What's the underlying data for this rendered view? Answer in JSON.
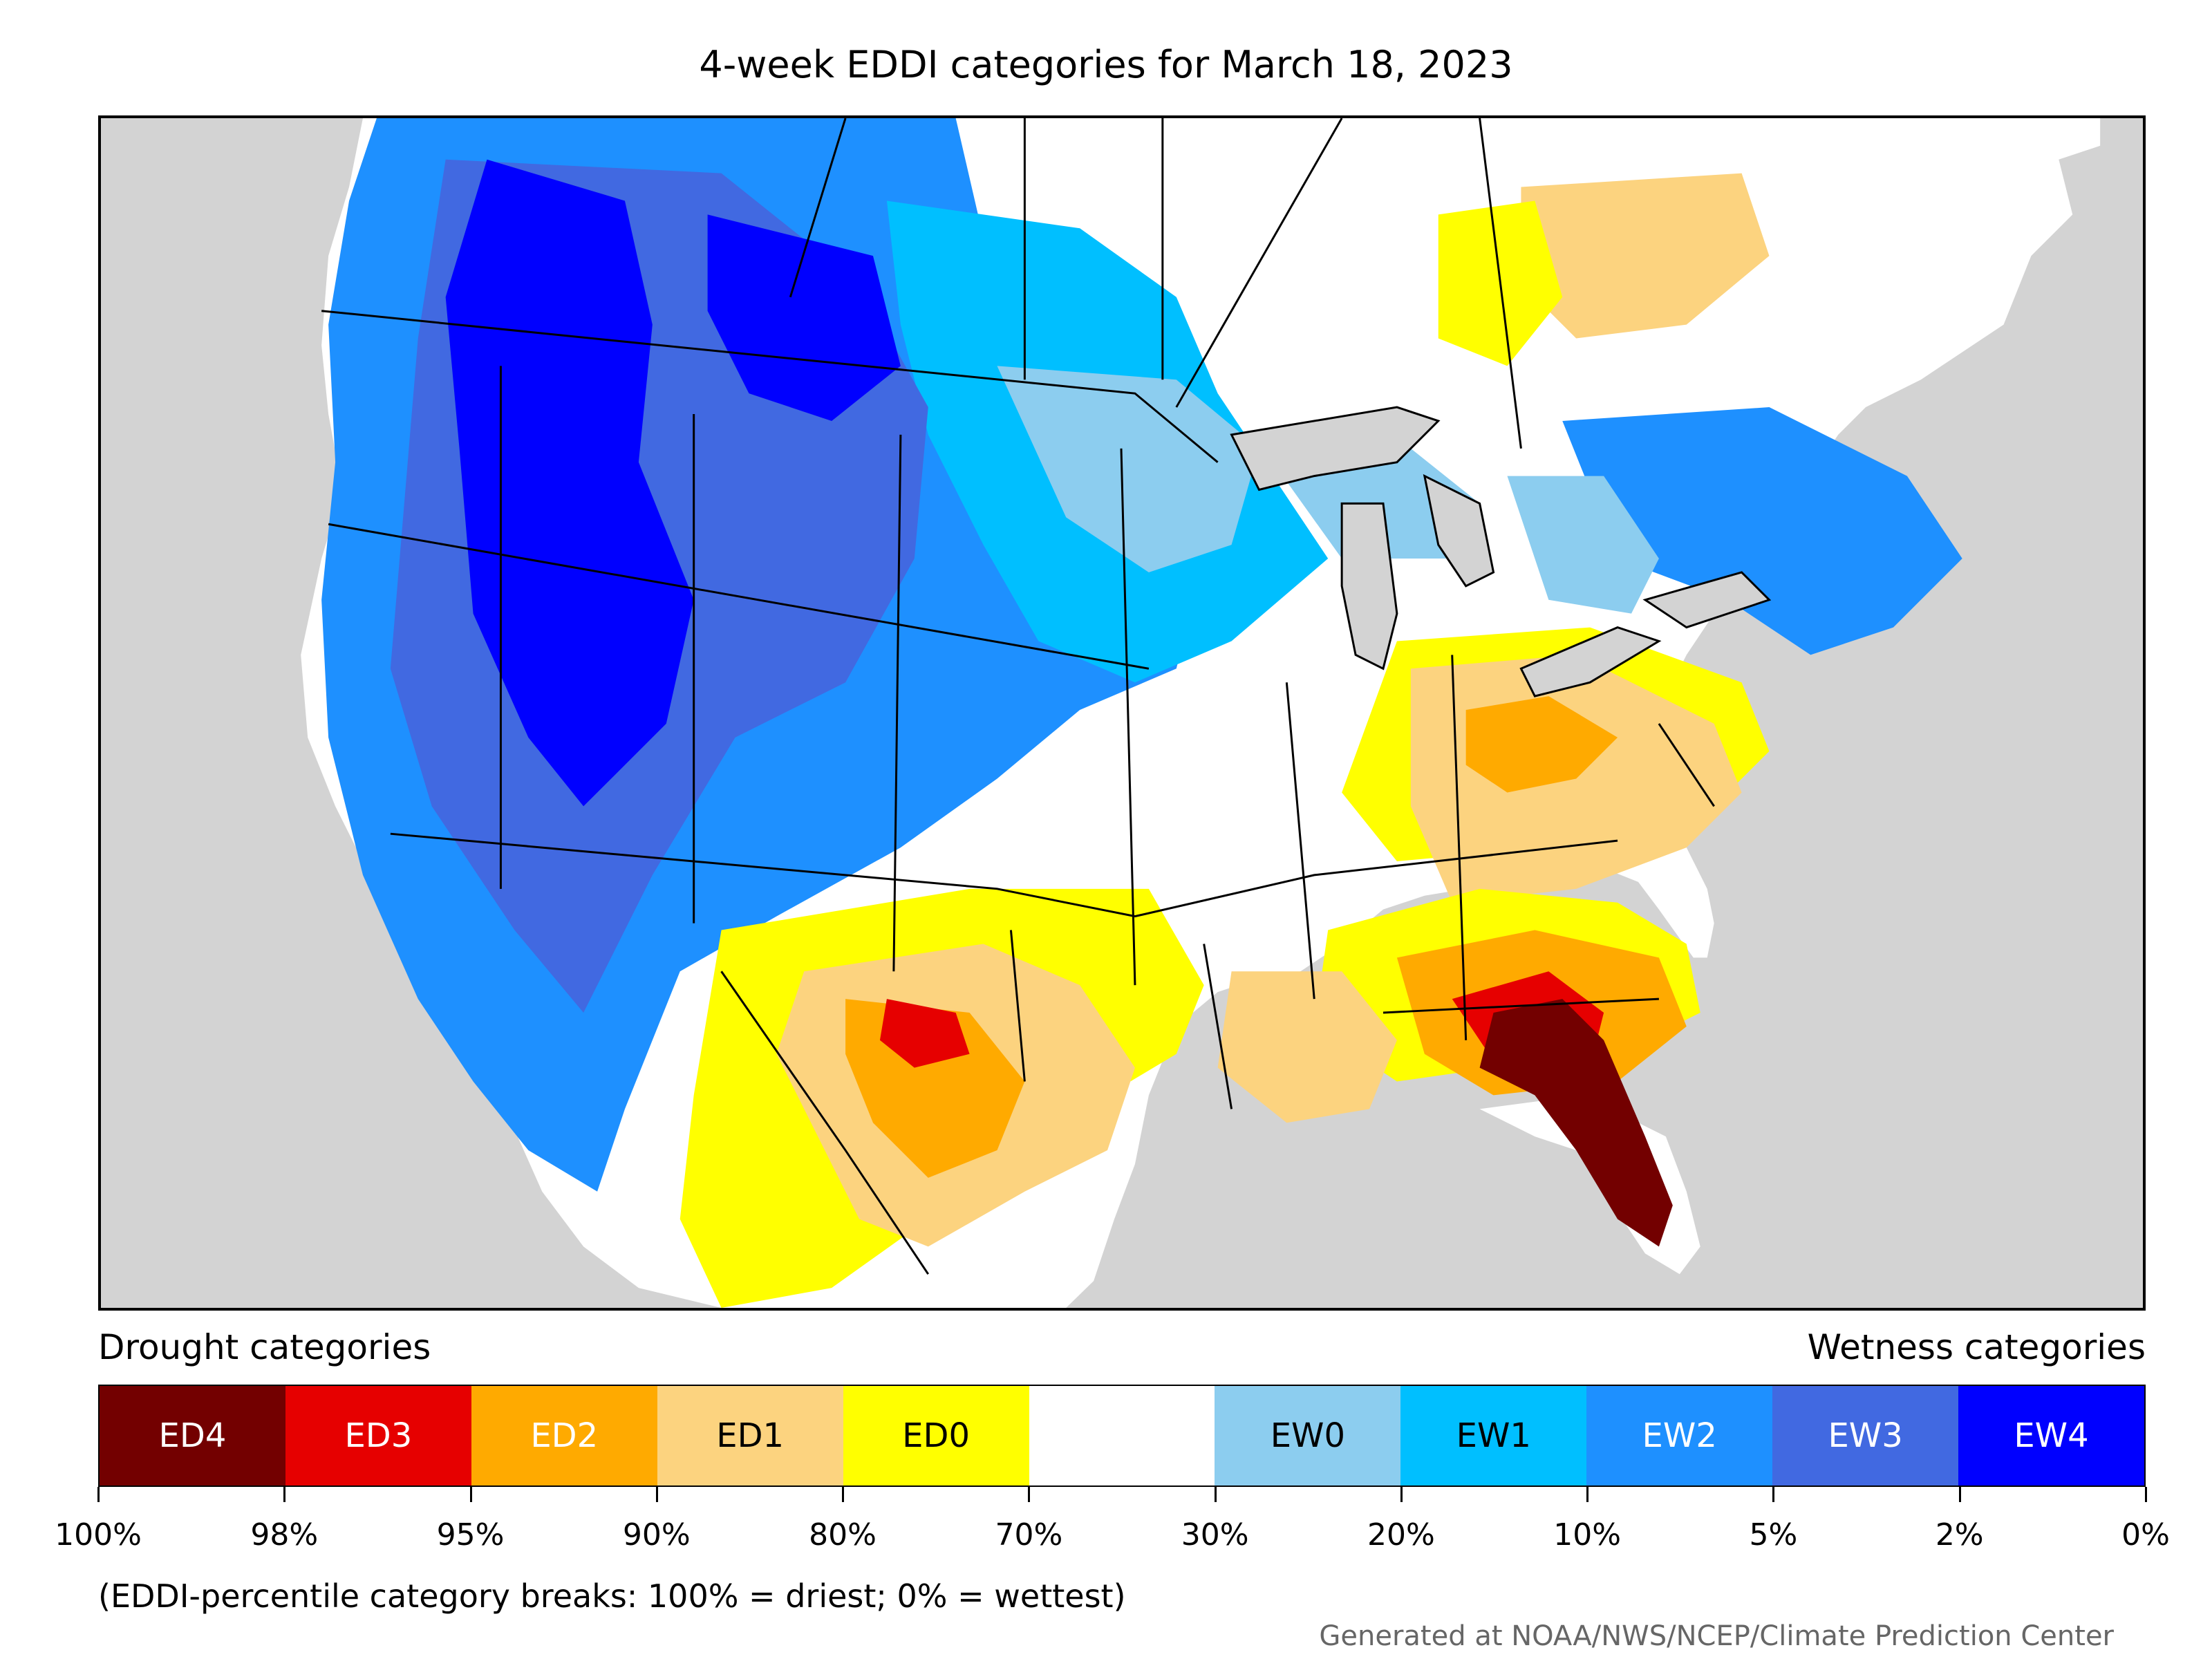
{
  "title": "4-week EDDI categories for March 18, 2023",
  "legend": {
    "drought_heading": "Drought categories",
    "wetness_heading": "Wetness categories",
    "categories": [
      {
        "label": "ED4",
        "color": "#730000",
        "text_color": "#ffffff"
      },
      {
        "label": "ED3",
        "color": "#e60000",
        "text_color": "#ffffff"
      },
      {
        "label": "ED2",
        "color": "#ffaa00",
        "text_color": "#ffffff"
      },
      {
        "label": "ED1",
        "color": "#fcd37f",
        "text_color": "#000000"
      },
      {
        "label": "ED0",
        "color": "#ffff00",
        "text_color": "#000000"
      },
      {
        "label": "",
        "color": "#ffffff",
        "text_color": "#000000"
      },
      {
        "label": "EW0",
        "color": "#8ccdef",
        "text_color": "#000000"
      },
      {
        "label": "EW1",
        "color": "#00bfff",
        "text_color": "#000000"
      },
      {
        "label": "EW2",
        "color": "#1e90ff",
        "text_color": "#ffffff"
      },
      {
        "label": "EW3",
        "color": "#4169e1",
        "text_color": "#ffffff"
      },
      {
        "label": "EW4",
        "color": "#0000ff",
        "text_color": "#ffffff"
      }
    ],
    "tick_labels": [
      "100%",
      "98%",
      "95%",
      "90%",
      "80%",
      "70%",
      "30%",
      "20%",
      "10%",
      "5%",
      "2%",
      "0%"
    ]
  },
  "note": "(EDDI-percentile category breaks: 100% = driest; 0% = wettest)",
  "credit": "Generated at NOAA/NWS/NCEP/Climate Prediction Center",
  "colors": {
    "land": "#ffffff",
    "water": "#d3d3d3",
    "lakes": "#d3d3d3",
    "border": "#000000"
  }
}
